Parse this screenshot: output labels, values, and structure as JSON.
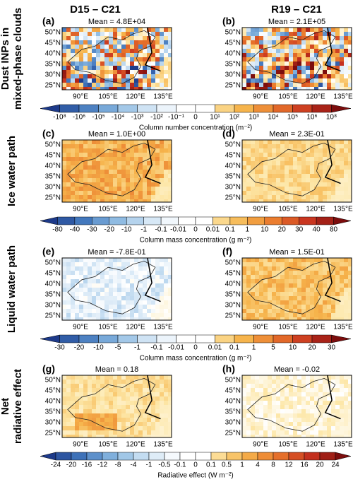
{
  "column_titles": [
    "D15 – C21",
    "R19 – C21"
  ],
  "lat_labels": [
    "50°N",
    "45°N",
    "40°N",
    "35°N",
    "30°N",
    "25°N"
  ],
  "lon_labels": [
    "90°E",
    "105°E",
    "120°E",
    "135°E"
  ],
  "rows": [
    {
      "label": [
        "Dust INPs in",
        "mixed-phase clouds"
      ],
      "panels": [
        {
          "letter": "(a)",
          "mean": "Mean = 4.8E+04"
        },
        {
          "letter": "(b)",
          "mean": "Mean = 2.1E+05"
        }
      ],
      "colorbar": {
        "label": "Column number concentration (m⁻²)",
        "ticks": [
          "-10⁸",
          "-10⁶",
          "-10⁵",
          "-10⁴",
          "-10³",
          "-10²",
          "-10⁻¹",
          "0",
          "10¹",
          "10²",
          "10³",
          "10⁴",
          "10⁵",
          "10⁶",
          "10⁸"
        ]
      }
    },
    {
      "label": [
        "Ice water path"
      ],
      "panels": [
        {
          "letter": "(c)",
          "mean": "Mean = 1.0E+00"
        },
        {
          "letter": "(d)",
          "mean": "Mean = 2.3E-01"
        }
      ],
      "colorbar": {
        "label": "Column mass concentration (g m⁻²)",
        "ticks": [
          "-80",
          "-40",
          "-30",
          "-20",
          "-10",
          "-1",
          "-0.1",
          "-0.01",
          "0",
          "0.01",
          "0.1",
          "1",
          "10",
          "20",
          "30",
          "40",
          "80"
        ]
      }
    },
    {
      "label": [
        "Liquid water path"
      ],
      "panels": [
        {
          "letter": "(e)",
          "mean": "Mean = -7.8E-01"
        },
        {
          "letter": "(f)",
          "mean": "Mean = 1.5E-01"
        }
      ],
      "colorbar": {
        "label": "Column mass concentration (g m⁻²)",
        "ticks": [
          "-30",
          "-20",
          "-10",
          "-5",
          "-1",
          "-0.1",
          "-0.01",
          "0",
          "0.01",
          "0.1",
          "1",
          "5",
          "10",
          "20",
          "30"
        ]
      }
    },
    {
      "label": [
        "Net",
        "radiative effect"
      ],
      "panels": [
        {
          "letter": "(g)",
          "mean": "Mean = 0.18"
        },
        {
          "letter": "(h)",
          "mean": "Mean = -0.02"
        }
      ],
      "colorbar": {
        "label": "Radiative effect (W m⁻²)",
        "ticks": [
          "-24",
          "-20",
          "-16",
          "-12",
          "-8",
          "-4",
          "-1",
          "-0.5",
          "-0.1",
          "0",
          "0.1",
          "0.5",
          "1",
          "4",
          "8",
          "12",
          "16",
          "20",
          "24"
        ]
      }
    }
  ]
}
